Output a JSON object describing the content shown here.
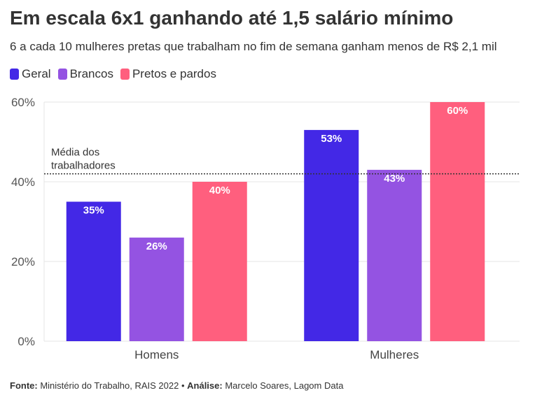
{
  "chart_data": {
    "type": "bar",
    "title": "Em escala 6x1 ganhando até 1,5 salário mínimo",
    "subtitle": "6 a cada 10 mulheres pretas que trabalham no fim de semana ganham menos de R$ 2,1 mil",
    "categories": [
      "Homens",
      "Mulheres"
    ],
    "series": [
      {
        "name": "Geral",
        "color": "#4328e6",
        "values": [
          35,
          53
        ],
        "labels": [
          "35%",
          "53%"
        ]
      },
      {
        "name": "Brancos",
        "color": "#9453e2",
        "values": [
          26,
          43
        ],
        "labels": [
          "26%",
          "43%"
        ]
      },
      {
        "name": "Pretos e pardos",
        "color": "#ff5f7e",
        "values": [
          40,
          60
        ],
        "labels": [
          "40%",
          "60%"
        ]
      }
    ],
    "ylim": [
      0,
      60
    ],
    "yticks": [
      0,
      20,
      40,
      60
    ],
    "ytick_labels": [
      "0%",
      "20%",
      "40%",
      "60%"
    ],
    "reference_line": {
      "value": 42,
      "label_line1": "Média dos",
      "label_line2": "trabalhadores"
    },
    "xlabel": "",
    "ylabel": "",
    "legend": "top-left",
    "grid": true
  },
  "footer": {
    "source_label": "Fonte:",
    "source_text": "Ministério do Trabalho, RAIS 2022 •",
    "analysis_label": "Análise:",
    "analysis_text": "Marcelo Soares, Lagom Data"
  }
}
